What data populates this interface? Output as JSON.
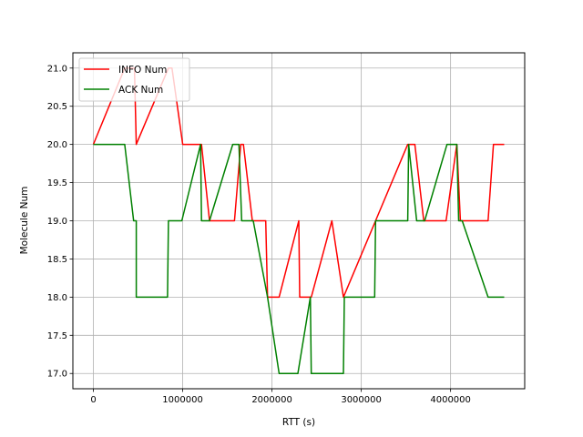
{
  "chart_data": {
    "type": "line",
    "title": "",
    "xlabel": "RTT (s)",
    "ylabel": "Molecule Num",
    "xlim": [
      -230000,
      4830000
    ],
    "ylim": [
      16.8,
      21.2
    ],
    "xticks": [
      0,
      1000000,
      2000000,
      3000000,
      4000000
    ],
    "xtick_labels": [
      "0",
      "1000000",
      "2000000",
      "3000000",
      "4000000"
    ],
    "yticks": [
      17.0,
      17.5,
      18.0,
      18.5,
      19.0,
      19.5,
      20.0,
      20.5,
      21.0
    ],
    "ytick_labels": [
      "17.0",
      "17.5",
      "18.0",
      "18.5",
      "19.0",
      "19.5",
      "20.0",
      "20.5",
      "21.0"
    ],
    "grid": true,
    "legend_position": "upper-left",
    "series": [
      {
        "name": "INFO Num",
        "color": "#ff0000",
        "points": [
          [
            0,
            20
          ],
          [
            350000,
            21
          ],
          [
            460000,
            21
          ],
          [
            480000,
            20
          ],
          [
            840000,
            21
          ],
          [
            880000,
            21
          ],
          [
            1000000,
            20
          ],
          [
            1190000,
            20
          ],
          [
            1210000,
            20
          ],
          [
            1300000,
            19
          ],
          [
            1580000,
            19
          ],
          [
            1650000,
            20
          ],
          [
            1680000,
            20
          ],
          [
            1780000,
            19
          ],
          [
            1930000,
            19
          ],
          [
            1950000,
            18
          ],
          [
            2080000,
            18
          ],
          [
            2300000,
            19
          ],
          [
            2310000,
            18
          ],
          [
            2440000,
            18
          ],
          [
            2670000,
            19
          ],
          [
            2800000,
            18
          ],
          [
            3160000,
            19
          ],
          [
            3520000,
            20
          ],
          [
            3600000,
            20
          ],
          [
            3700000,
            19
          ],
          [
            3950000,
            19
          ],
          [
            4070000,
            20
          ],
          [
            4110000,
            19
          ],
          [
            4220000,
            19
          ],
          [
            4420000,
            19
          ],
          [
            4480000,
            20
          ],
          [
            4600000,
            20
          ]
        ]
      },
      {
        "name": "ACK Num",
        "color": "#008000",
        "points": [
          [
            0,
            20
          ],
          [
            350000,
            20
          ],
          [
            450000,
            19
          ],
          [
            480000,
            19
          ],
          [
            480000,
            18
          ],
          [
            830000,
            18
          ],
          [
            840000,
            19
          ],
          [
            990000,
            19
          ],
          [
            1200000,
            20
          ],
          [
            1210000,
            19
          ],
          [
            1300000,
            19
          ],
          [
            1560000,
            20
          ],
          [
            1630000,
            20
          ],
          [
            1660000,
            19
          ],
          [
            1790000,
            19
          ],
          [
            1950000,
            18
          ],
          [
            2080000,
            17
          ],
          [
            2290000,
            17
          ],
          [
            2430000,
            18
          ],
          [
            2440000,
            17
          ],
          [
            2800000,
            17
          ],
          [
            2810000,
            18
          ],
          [
            3150000,
            18
          ],
          [
            3160000,
            19
          ],
          [
            3520000,
            19
          ],
          [
            3530000,
            20
          ],
          [
            3620000,
            19
          ],
          [
            3710000,
            19
          ],
          [
            3960000,
            20
          ],
          [
            4070000,
            20
          ],
          [
            4090000,
            19
          ],
          [
            4130000,
            19
          ],
          [
            4420000,
            18
          ],
          [
            4600000,
            18
          ]
        ]
      }
    ]
  }
}
